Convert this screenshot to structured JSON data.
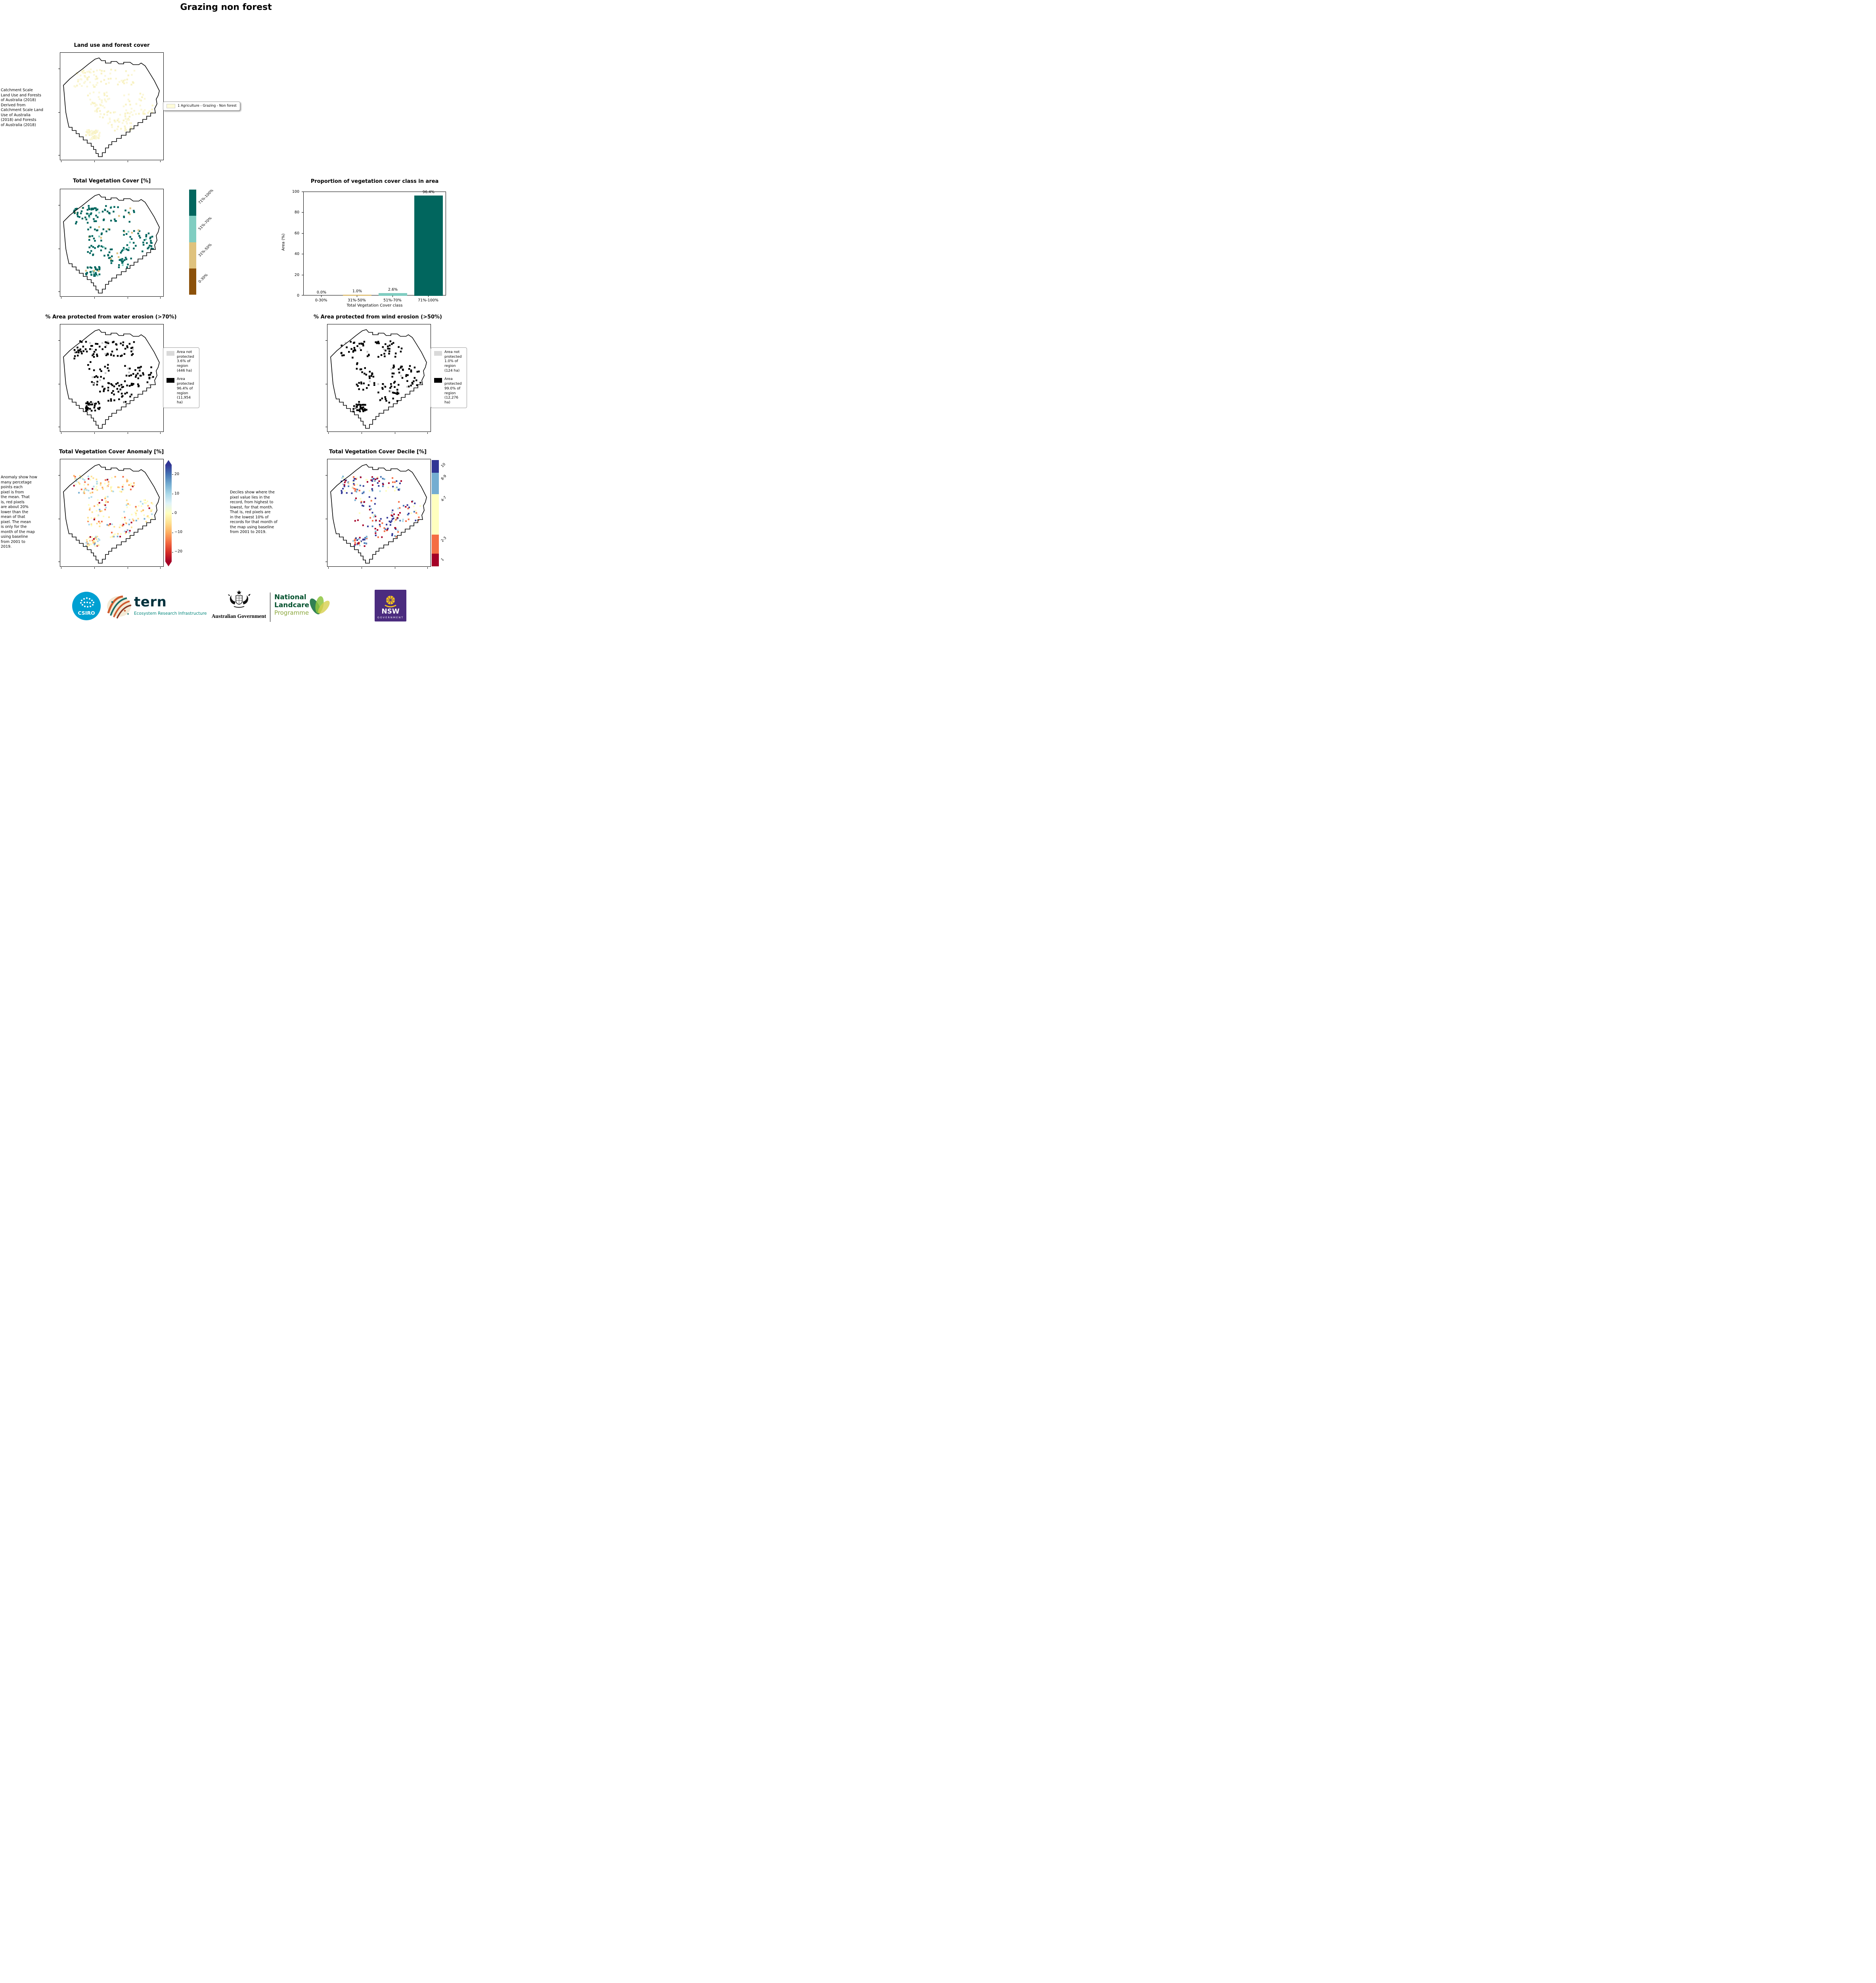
{
  "page": {
    "title": "Grazing non forest"
  },
  "panels": {
    "land_use": {
      "title": "Land use and forest cover",
      "note": "Catchment Scale\nLand Use and Forests\nof Australia (2018)\nDerived from\nCatchment Scale Land\nUse of Australia\n(2018) and Forests\nof Australia (2018)",
      "legend_items": [
        {
          "label": "1 Agriculture - Grazing - Non forest",
          "color": "#fffcd9"
        }
      ]
    },
    "veg_cover": {
      "title": "Total Vegetation Cover [%]",
      "colorbar": {
        "labels": [
          "71%-100%",
          "51%-70%",
          "31%-50%",
          "0-30%"
        ],
        "colors": [
          "#01665e",
          "#80cdc1",
          "#dfc27d",
          "#8c510a"
        ]
      }
    },
    "water_erosion": {
      "title": "% Area protected from water erosion (>70%)",
      "legend_items": [
        {
          "label": "Area not\nprotected\n3.6% of\nregion\n(446 ha)",
          "color": "#d9d9d9"
        },
        {
          "label": "Area\nprotected\n96.4% of\nregion\n(11,954\nha)",
          "color": "#000000"
        }
      ]
    },
    "wind_erosion": {
      "title": "% Area protected from wind erosion (>50%)",
      "legend_items": [
        {
          "label": "Area not\nprotected\n1.0% of\nregion\n(124 ha)",
          "color": "#d9d9d9"
        },
        {
          "label": "Area\nprotected\n99.0% of\nregion\n(12,276\nha)",
          "color": "#000000"
        }
      ]
    },
    "anomaly": {
      "title": "Total Vegetation Cover Anomaly [%]",
      "note": "Anomaly show how\nmany percetage\npoints each\npixel is from\nthe mean. That\nis, red pixels\nare about 20%\nlower than the\nmean of that\npixel. The mean\nis only for the\nmonth of the map\nusing baseline\nfrom 2001 to\n2019.",
      "colorbar": {
        "ticks": [
          "20",
          "10",
          "0",
          "−10",
          "−20"
        ],
        "gradient": [
          "#313695",
          "#74add1",
          "#ffffbf",
          "#f46d43",
          "#a50026"
        ]
      }
    },
    "decile": {
      "title": "Total Vegetation Cover Decile [%]",
      "note": "Deciles show where the\npixel value lies in the\nrecord, from highest to\nlowest, for that month.\nThat is, red pixels are\nin the lowest 10% of\nrecords for that month of\nthe map using baseline\nfrom 2001 to 2019.",
      "colorbar": {
        "labels": [
          "10",
          "8-9",
          "4-7",
          "2-3",
          "1"
        ],
        "colors": [
          "#313695",
          "#74add1",
          "#ffffbf",
          "#f46d43",
          "#a50026"
        ]
      }
    }
  },
  "chart_data": [
    {
      "type": "bar",
      "title": "Proportion of vegetation cover class in area",
      "categories": [
        "0-30%",
        "31%-50%",
        "51%-70%",
        "71%-100%"
      ],
      "values": [
        0.0,
        1.0,
        2.6,
        96.4
      ],
      "value_labels": [
        "0.0%",
        "1.0%",
        "2.6%",
        "96.4%"
      ],
      "bar_colors": [
        "#8c510a",
        "#dfc27d",
        "#80cdc1",
        "#01665e"
      ],
      "xlabel": "Total Vegetation Cover class",
      "ylabel": "Area (%)",
      "ylim": [
        0,
        100
      ],
      "yticks": [
        0,
        20,
        40,
        60,
        80,
        100
      ],
      "grid": false,
      "legend_position": "none"
    }
  ],
  "footer": {
    "csiro": "CSIRO",
    "tern": "tern",
    "tern_sub": "Ecosystem Research Infrastructure",
    "aus_gov": "Australian Government",
    "landcare_line1": "National",
    "landcare_line2": "Landcare",
    "landcare_line3": "Programme",
    "nsw": "NSW",
    "nsw_sub": "GOVERNMENT"
  }
}
